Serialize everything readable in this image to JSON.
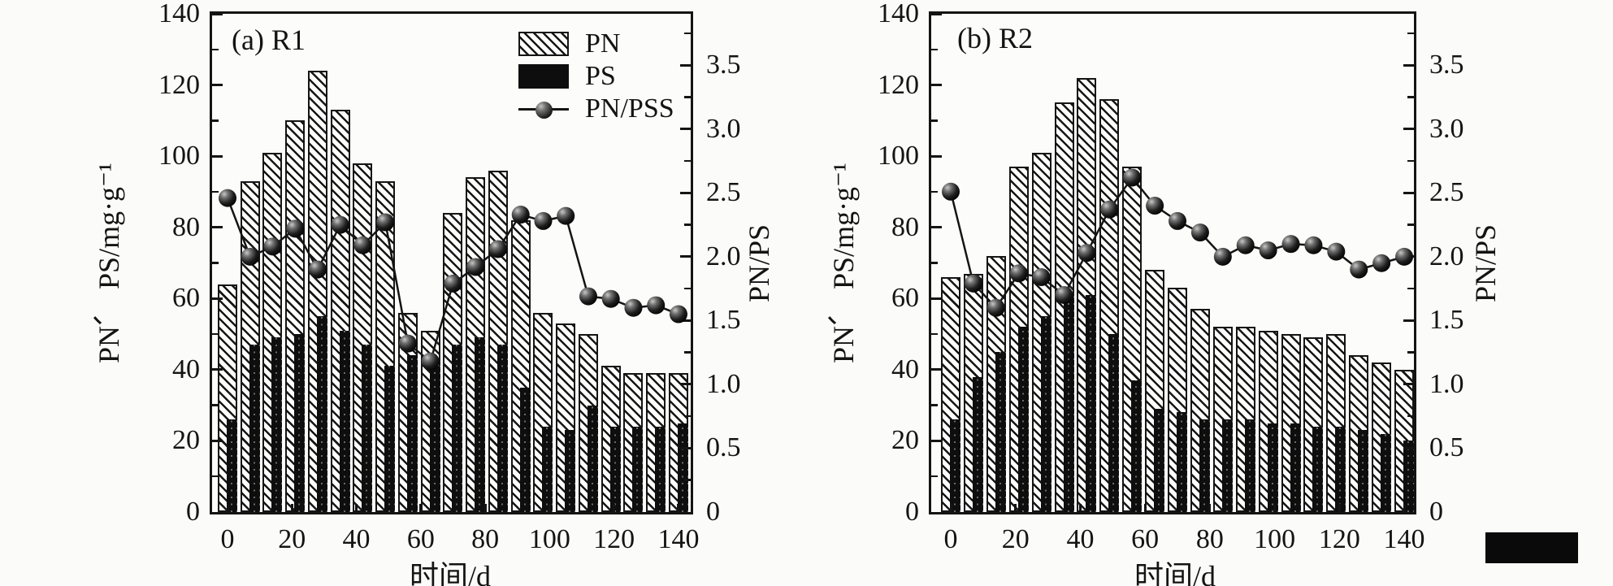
{
  "figure": {
    "description": "Two-panel scientific chart of PN and PS contents (bars) and PN/PSS ratio (line with sphere markers) versus time in days for reactors R1 and R2",
    "colors": {
      "ink": "#141414",
      "background": "#fbfbf9",
      "pn_fill": "hatched-white",
      "ps_fill": "solid-black"
    }
  },
  "chart_data": [
    {
      "type": "bar+line",
      "title": "(a) R1",
      "xlabel": "时间/d",
      "ylabel_left": "PN、 PS/mg·g⁻¹",
      "ylabel_right": "PN/PS",
      "x": [
        0,
        7,
        14,
        21,
        28,
        35,
        42,
        49,
        56,
        63,
        70,
        77,
        84,
        91,
        98,
        105,
        112,
        119,
        126,
        133,
        140
      ],
      "series": [
        {
          "name": "PN",
          "type": "bar",
          "style": "hatched",
          "axis": "left",
          "values": [
            64,
            93,
            101,
            110,
            124,
            113,
            98,
            93,
            56,
            51,
            84,
            94,
            96,
            82,
            56,
            53,
            50,
            41,
            39,
            39,
            39
          ]
        },
        {
          "name": "PS",
          "type": "bar",
          "style": "solid-black",
          "axis": "left",
          "values": [
            26,
            47,
            49,
            50,
            55,
            51,
            47,
            41,
            44,
            41,
            47,
            49,
            47,
            35,
            24,
            23,
            30,
            24,
            24,
            24,
            25
          ]
        },
        {
          "name": "PN/PSS",
          "type": "line",
          "marker": "sphere",
          "axis": "right",
          "values": [
            2.46,
            2.0,
            2.08,
            2.22,
            1.9,
            2.25,
            2.09,
            2.27,
            1.32,
            1.18,
            1.79,
            1.92,
            2.06,
            2.33,
            2.28,
            2.32,
            1.69,
            1.67,
            1.6,
            1.62,
            1.55
          ]
        }
      ],
      "xticks": [
        0,
        20,
        40,
        60,
        80,
        100,
        120,
        140
      ],
      "xlim": [
        -5,
        146
      ],
      "ylim_left": [
        0,
        140
      ],
      "yticks_left": [
        0,
        20,
        40,
        60,
        80,
        100,
        120,
        140
      ],
      "ylim_right": [
        0,
        3.9
      ],
      "yticks_right": [
        "0",
        "0.5",
        "1.0",
        "1.5",
        "2.0",
        "2.5",
        "3.0",
        "3.5"
      ],
      "grid": "off",
      "legend": {
        "position": "top-right",
        "entries": [
          "PN",
          "PS",
          "PN/PSS"
        ]
      }
    },
    {
      "type": "bar+line",
      "title": "(b) R2",
      "xlabel": "时间/d",
      "ylabel_left": "PN、 PS/mg·g⁻¹",
      "ylabel_right": "PN/PS",
      "x": [
        0,
        7,
        14,
        21,
        28,
        35,
        42,
        49,
        56,
        63,
        70,
        77,
        84,
        91,
        98,
        105,
        112,
        119,
        126,
        133,
        140
      ],
      "series": [
        {
          "name": "PN",
          "type": "bar",
          "style": "hatched",
          "axis": "left",
          "values": [
            66,
            67,
            72,
            97,
            101,
            115,
            122,
            116,
            97,
            68,
            63,
            57,
            52,
            52,
            51,
            50,
            49,
            50,
            44,
            42,
            40
          ]
        },
        {
          "name": "PS",
          "type": "bar",
          "style": "solid-black",
          "axis": "left",
          "values": [
            26,
            38,
            45,
            52,
            55,
            61,
            61,
            50,
            37,
            29,
            28,
            26,
            26,
            26,
            25,
            25,
            24,
            24,
            23,
            22,
            20
          ]
        },
        {
          "name": "PN/PSS",
          "type": "line",
          "marker": "sphere",
          "axis": "right",
          "values": [
            2.51,
            1.79,
            1.6,
            1.87,
            1.84,
            1.7,
            2.03,
            2.37,
            2.62,
            2.4,
            2.28,
            2.19,
            2.0,
            2.09,
            2.05,
            2.1,
            2.09,
            2.04,
            1.9,
            1.95,
            2.0
          ]
        }
      ],
      "xticks": [
        0,
        20,
        40,
        60,
        80,
        100,
        120,
        140
      ],
      "xlim": [
        -5,
        146
      ],
      "ylim_left": [
        0,
        140
      ],
      "yticks_left": [
        0,
        20,
        40,
        60,
        80,
        100,
        120,
        140
      ],
      "ylim_right": [
        0,
        3.9
      ],
      "yticks_right": [
        "0",
        "0.5",
        "1.0",
        "1.5",
        "2.0",
        "2.5",
        "3.0",
        "3.5"
      ],
      "grid": "off",
      "legend": null
    }
  ]
}
